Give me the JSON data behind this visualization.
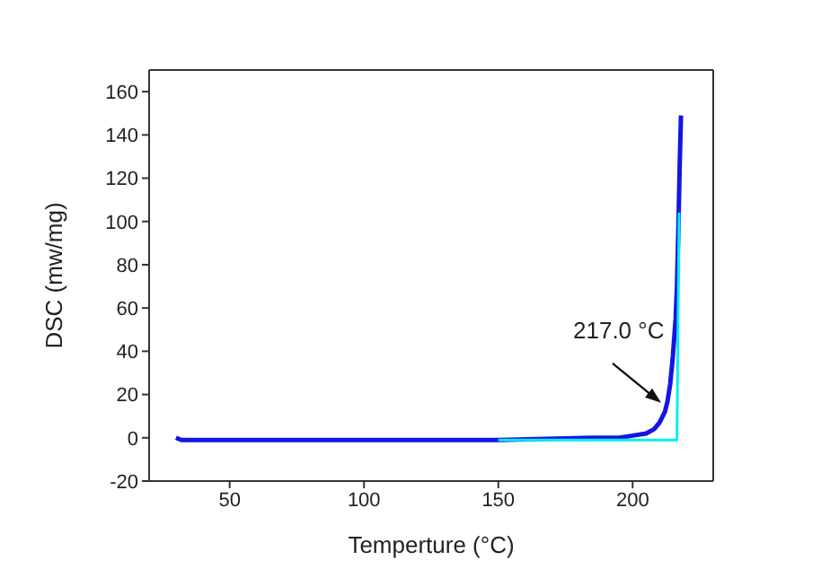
{
  "chart_data": {
    "type": "line",
    "xlabel": "Temperture (°C)",
    "ylabel": "DSC (mw/mg)",
    "xlim": [
      20,
      230
    ],
    "xticks": [
      50,
      100,
      150,
      200
    ],
    "ylim": [
      -20,
      170
    ],
    "yticks": [
      -20,
      0,
      20,
      40,
      60,
      80,
      100,
      120,
      140,
      160
    ],
    "marker": "none",
    "line_style": "solid",
    "annotations": [
      {
        "text": "217.0 °C",
        "x": 210,
        "y": 16
      }
    ],
    "series": [
      {
        "color": "#1414e6",
        "x": [
          30,
          32,
          60,
          100,
          150,
          185,
          195,
          200,
          205,
          208,
          210,
          212,
          213,
          214,
          215,
          216,
          216.5,
          217,
          217.5,
          218
        ],
        "values": [
          0,
          -1,
          -1,
          -1,
          -1,
          0,
          0,
          1,
          2,
          4,
          7,
          12,
          17,
          25,
          38,
          55,
          70,
          95,
          125,
          149
        ]
      },
      {
        "color": "#00f0f0",
        "x": [
          150,
          216.5,
          217.3
        ],
        "values": [
          -1,
          -1,
          104
        ]
      }
    ]
  }
}
